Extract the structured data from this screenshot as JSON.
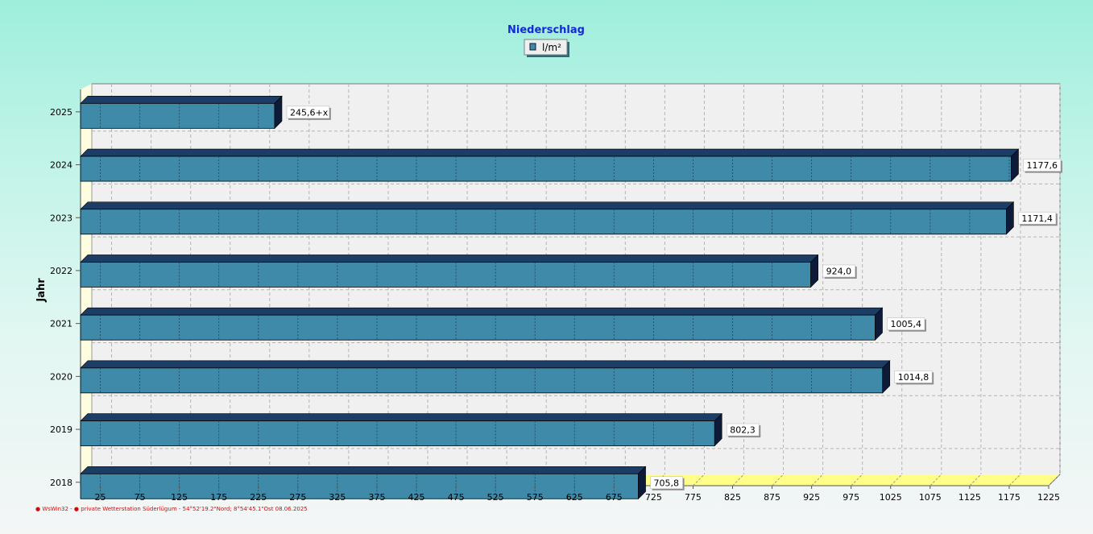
{
  "chart_data": {
    "type": "bar",
    "orientation": "horizontal",
    "title": "Niederschlag",
    "ylabel": "Jahr",
    "xlabel": "",
    "categories": [
      "2025",
      "2024",
      "2023",
      "2022",
      "2021",
      "2020",
      "2019",
      "2018"
    ],
    "series": [
      {
        "name": "l/m²",
        "values": [
          245.6,
          1177.6,
          1171.4,
          924.0,
          1005.4,
          1014.8,
          802.3,
          705.8
        ],
        "labels": [
          "245,6+x",
          "1177,6",
          "1171,4",
          "924,0",
          "1005,4",
          "1014,8",
          "802,3",
          "705,8"
        ]
      }
    ],
    "xticks": [
      "25",
      "75",
      "125",
      "175",
      "225",
      "275",
      "325",
      "375",
      "425",
      "475",
      "525",
      "575",
      "625",
      "675",
      "725",
      "775",
      "825",
      "875",
      "925",
      "975",
      "1025",
      "1075",
      "1125",
      "1175",
      "1225"
    ],
    "xlim": [
      0,
      1225
    ],
    "grid": true,
    "legend_position": "top-center",
    "colors": {
      "bar_face": "#3e8aa8",
      "bar_top": "#1c3d66",
      "bar_side": "#0e1b38",
      "wall": "#f0f0f0",
      "floor": "#ffff88",
      "title": "#1428d8",
      "footer": "#cc1010"
    }
  },
  "footer": "● WsWin32 - ● private Wetterstation Süderlügum - 54°52'19.2\"Nord; 8°54'45.1\"Ost 08.06.2025"
}
